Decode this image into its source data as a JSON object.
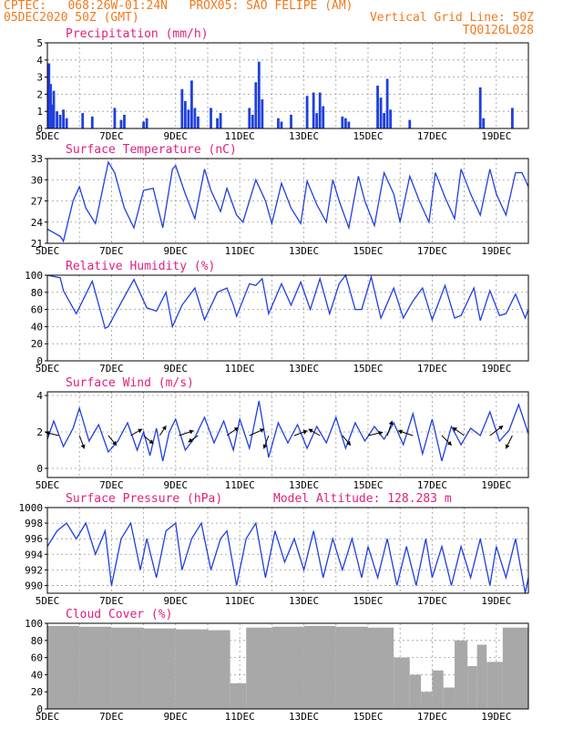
{
  "header": {
    "line1_left": "CPTEC:   068:26W-01:24N   PROX05: SAO FELIPE (AM)",
    "line2_left": "05DEC2020 50Z (GMT)",
    "line2_right": "Vertical Grid Line: 50Z",
    "line3_right": "TQ0126L028"
  },
  "colors": {
    "header": "#f07a1e",
    "title": "#e0207e",
    "series": "#1f3fe0",
    "cloud": "#a8a8a8",
    "grid": "#9a9a9a"
  },
  "chart_data": [
    {
      "type": "bar",
      "title": "Precipitation (mm/h)",
      "ylim": [
        0,
        5
      ],
      "yticks": [
        0,
        1,
        2,
        3,
        4,
        5
      ],
      "x_domain_days": [
        5,
        20
      ],
      "xticks": [
        "5DEC",
        "7DEC",
        "9DEC",
        "11DEC",
        "13DEC",
        "15DEC",
        "17DEC",
        "19DEC"
      ],
      "x": [
        5.05,
        5.1,
        5.15,
        5.2,
        5.3,
        5.4,
        5.5,
        5.6,
        6.1,
        6.4,
        7.1,
        7.3,
        7.4,
        8.0,
        8.1,
        9.2,
        9.3,
        9.4,
        9.5,
        9.6,
        9.7,
        10.1,
        10.3,
        10.4,
        11.3,
        11.4,
        11.5,
        11.6,
        11.7,
        12.2,
        12.3,
        12.6,
        13.1,
        13.3,
        13.4,
        13.5,
        13.6,
        14.2,
        14.3,
        14.4,
        15.3,
        15.4,
        15.5,
        15.6,
        15.7,
        16.3,
        18.5,
        18.6,
        19.5
      ],
      "values": [
        3.8,
        2.6,
        1.4,
        2.2,
        1.0,
        0.8,
        1.1,
        0.6,
        0.9,
        0.7,
        1.2,
        0.5,
        0.8,
        0.4,
        0.6,
        2.3,
        1.6,
        1.1,
        2.8,
        1.2,
        0.7,
        1.2,
        0.6,
        0.9,
        1.2,
        0.8,
        2.7,
        3.9,
        1.7,
        0.6,
        0.4,
        0.8,
        1.9,
        2.1,
        0.9,
        2.1,
        1.3,
        0.7,
        0.6,
        0.4,
        2.5,
        1.8,
        0.9,
        2.9,
        1.1,
        0.5,
        2.4,
        0.6,
        1.2
      ]
    },
    {
      "type": "line",
      "title": "Surface Temperature (nC)",
      "ylim": [
        21,
        33
      ],
      "yticks": [
        21,
        24,
        27,
        30,
        33
      ],
      "x_domain_days": [
        5,
        20
      ],
      "xticks": [
        "5DEC",
        "7DEC",
        "9DEC",
        "11DEC",
        "13DEC",
        "15DEC",
        "17DEC",
        "19DEC"
      ],
      "x": [
        5.0,
        5.4,
        5.5,
        5.8,
        6.0,
        6.2,
        6.5,
        6.9,
        7.1,
        7.4,
        7.7,
        8.0,
        8.3,
        8.6,
        8.9,
        9.0,
        9.3,
        9.6,
        9.9,
        10.1,
        10.4,
        10.6,
        10.9,
        11.1,
        11.5,
        11.8,
        12.0,
        12.3,
        12.6,
        12.9,
        13.1,
        13.4,
        13.7,
        13.9,
        14.1,
        14.4,
        14.7,
        14.9,
        15.2,
        15.5,
        15.8,
        16.0,
        16.3,
        16.6,
        16.9,
        17.1,
        17.4,
        17.7,
        17.9,
        18.2,
        18.5,
        18.8,
        19.0,
        19.3,
        19.6,
        19.8,
        20.0
      ],
      "y": [
        23.0,
        22.0,
        21.3,
        27.0,
        29.0,
        26.0,
        23.8,
        32.5,
        31.0,
        26.0,
        23.2,
        28.5,
        28.8,
        23.2,
        31.5,
        32.0,
        28.0,
        24.5,
        31.5,
        28.5,
        25.5,
        28.8,
        25.0,
        24.0,
        30.0,
        27.0,
        23.8,
        29.5,
        26.0,
        23.8,
        29.8,
        26.5,
        24.0,
        30.0,
        27.0,
        23.2,
        30.5,
        27.0,
        23.5,
        31.0,
        28.0,
        24.0,
        30.5,
        27.0,
        24.0,
        31.0,
        27.5,
        24.5,
        31.5,
        28.0,
        25.0,
        31.5,
        28.0,
        25.0,
        31.0,
        31.0,
        29.0
      ]
    },
    {
      "type": "line",
      "title": "Relative Humidity (%)",
      "ylim": [
        0,
        100
      ],
      "yticks": [
        0,
        20,
        40,
        60,
        80,
        100
      ],
      "x_domain_days": [
        5,
        20
      ],
      "xticks": [
        "5DEC",
        "7DEC",
        "9DEC",
        "11DEC",
        "13DEC",
        "15DEC",
        "17DEC",
        "19DEC"
      ],
      "x": [
        5.0,
        5.4,
        5.5,
        5.9,
        6.4,
        6.8,
        6.9,
        7.3,
        7.7,
        8.1,
        8.4,
        8.7,
        8.9,
        9.2,
        9.6,
        9.9,
        10.3,
        10.6,
        10.8,
        10.9,
        11.3,
        11.5,
        11.7,
        11.9,
        12.3,
        12.6,
        12.9,
        13.2,
        13.5,
        13.8,
        14.1,
        14.3,
        14.6,
        14.8,
        15.1,
        15.4,
        15.8,
        16.1,
        16.4,
        16.7,
        17.0,
        17.4,
        17.7,
        17.9,
        18.3,
        18.5,
        18.8,
        19.1,
        19.3,
        19.6,
        19.9,
        20.0
      ],
      "y": [
        100,
        97,
        82,
        55,
        93,
        38,
        40,
        68,
        95,
        62,
        58,
        80,
        40,
        65,
        85,
        48,
        80,
        85,
        65,
        52,
        90,
        88,
        96,
        55,
        90,
        65,
        92,
        60,
        96,
        55,
        90,
        100,
        60,
        60,
        98,
        50,
        85,
        50,
        70,
        85,
        48,
        88,
        50,
        53,
        85,
        47,
        82,
        53,
        55,
        78,
        50,
        60
      ]
    },
    {
      "type": "line",
      "title": "Surface Wind (m/s)",
      "ylim": [
        -0.5,
        4.2
      ],
      "yticks": [
        0,
        2,
        4
      ],
      "x_domain_days": [
        5,
        20
      ],
      "xticks": [
        "5DEC",
        "7DEC",
        "9DEC",
        "11DEC",
        "13DEC",
        "15DEC",
        "17DEC",
        "19DEC"
      ],
      "x": [
        5.0,
        5.2,
        5.5,
        5.8,
        6.0,
        6.3,
        6.6,
        6.9,
        7.2,
        7.5,
        7.8,
        8.0,
        8.2,
        8.4,
        8.6,
        8.8,
        9.0,
        9.3,
        9.6,
        9.9,
        10.2,
        10.5,
        10.8,
        11.0,
        11.3,
        11.6,
        11.9,
        12.2,
        12.5,
        12.8,
        13.1,
        13.4,
        13.7,
        14.0,
        14.3,
        14.6,
        14.9,
        15.2,
        15.5,
        15.8,
        16.1,
        16.4,
        16.7,
        17.0,
        17.3,
        17.6,
        17.9,
        18.2,
        18.5,
        18.8,
        19.1,
        19.4,
        19.7,
        20.0
      ],
      "y": [
        1.6,
        2.6,
        1.2,
        2.2,
        3.3,
        1.5,
        2.4,
        0.9,
        1.5,
        2.5,
        1.0,
        2.0,
        0.7,
        2.2,
        0.4,
        2.0,
        2.7,
        1.0,
        1.7,
        2.8,
        1.4,
        2.6,
        1.0,
        2.7,
        1.1,
        3.7,
        0.6,
        2.5,
        1.4,
        2.4,
        1.1,
        2.3,
        1.4,
        2.8,
        1.1,
        2.5,
        1.5,
        2.3,
        1.6,
        2.5,
        1.3,
        3.0,
        0.8,
        2.7,
        0.4,
        2.3,
        1.3,
        2.2,
        1.8,
        3.1,
        1.5,
        2.1,
        3.5,
        1.9
      ],
      "vectors": [
        {
          "x": 5.35,
          "u": -0.8,
          "v": 0.2
        },
        {
          "x": 6.0,
          "u": 0.3,
          "v": -0.8
        },
        {
          "x": 6.9,
          "u": 0.5,
          "v": -0.6
        },
        {
          "x": 7.6,
          "u": 0.7,
          "v": 0.4
        },
        {
          "x": 8.0,
          "u": 0.6,
          "v": -0.5
        },
        {
          "x": 8.5,
          "u": 0.4,
          "v": 0.6
        },
        {
          "x": 9.1,
          "u": 0.9,
          "v": 0.3
        },
        {
          "x": 9.7,
          "u": -0.6,
          "v": -0.4
        },
        {
          "x": 10.6,
          "u": 0.7,
          "v": 0.5
        },
        {
          "x": 11.3,
          "u": 0.9,
          "v": 0.4
        },
        {
          "x": 11.9,
          "u": -0.3,
          "v": -0.8
        },
        {
          "x": 12.7,
          "u": 0.8,
          "v": 0.3
        },
        {
          "x": 13.5,
          "u": -0.7,
          "v": 0.4
        },
        {
          "x": 14.2,
          "u": 0.5,
          "v": -0.6
        },
        {
          "x": 15.0,
          "u": 0.9,
          "v": 0.2
        },
        {
          "x": 15.6,
          "u": 0.3,
          "v": 0.9
        },
        {
          "x": 16.4,
          "u": -0.9,
          "v": 0.3
        },
        {
          "x": 17.3,
          "u": 0.6,
          "v": -0.6
        },
        {
          "x": 18.0,
          "u": -0.7,
          "v": 0.5
        },
        {
          "x": 18.8,
          "u": 0.8,
          "v": 0.6
        },
        {
          "x": 19.5,
          "u": -0.4,
          "v": -0.8
        }
      ]
    },
    {
      "type": "line",
      "title": "Surface Pressure (hPa)",
      "annotation": "Model Altitude: 128.283 m",
      "ylim": [
        989,
        1000
      ],
      "yticks": [
        990,
        992,
        994,
        996,
        998,
        1000
      ],
      "x_domain_days": [
        5,
        20
      ],
      "xticks": [
        "5DEC",
        "7DEC",
        "9DEC",
        "11DEC",
        "13DEC",
        "15DEC",
        "17DEC",
        "19DEC"
      ],
      "x": [
        5.0,
        5.3,
        5.6,
        5.9,
        6.2,
        6.5,
        6.8,
        7.0,
        7.3,
        7.6,
        7.9,
        8.1,
        8.4,
        8.7,
        9.0,
        9.2,
        9.5,
        9.8,
        10.1,
        10.4,
        10.6,
        10.9,
        11.2,
        11.5,
        11.8,
        12.1,
        12.4,
        12.7,
        13.0,
        13.3,
        13.6,
        13.9,
        14.2,
        14.5,
        14.8,
        15.0,
        15.3,
        15.6,
        15.9,
        16.2,
        16.5,
        16.8,
        17.0,
        17.3,
        17.6,
        17.9,
        18.2,
        18.5,
        18.8,
        19.0,
        19.3,
        19.6,
        19.9,
        20.0
      ],
      "y": [
        995,
        997,
        998,
        996,
        998,
        994,
        997,
        990,
        996,
        998,
        992,
        996,
        991,
        997,
        998,
        992,
        996,
        998,
        992,
        996,
        997,
        990,
        996,
        998,
        991,
        997,
        993,
        996,
        992,
        997,
        991,
        996,
        992,
        996,
        991,
        995,
        991,
        996,
        990,
        995,
        990,
        996,
        991,
        995,
        990,
        995,
        991,
        996,
        990,
        995,
        991,
        996,
        989,
        991
      ]
    },
    {
      "type": "bar",
      "title": "Cloud Cover (%)",
      "ylim": [
        0,
        100
      ],
      "yticks": [
        0,
        20,
        40,
        60,
        80,
        100
      ],
      "x_domain_days": [
        5,
        20
      ],
      "xticks": [
        "5DEC",
        "7DEC",
        "9DEC",
        "11DEC",
        "13DEC",
        "15DEC",
        "17DEC",
        "19DEC"
      ],
      "x": [
        5.5,
        6.5,
        7.5,
        8.5,
        9.5,
        10.5,
        10.9,
        11.5,
        12.5,
        13.5,
        14.5,
        15.5,
        16.1,
        16.5,
        16.8,
        17.2,
        17.5,
        17.9,
        18.3,
        18.5,
        18.9,
        19.5
      ],
      "values": [
        97,
        96,
        95,
        94,
        93,
        92,
        30,
        95,
        96,
        97,
        96,
        95,
        60,
        40,
        20,
        45,
        25,
        80,
        50,
        75,
        55,
        95
      ]
    }
  ]
}
